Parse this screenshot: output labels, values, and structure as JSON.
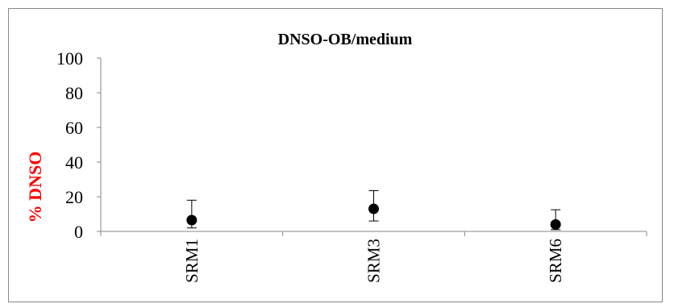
{
  "chart_data": {
    "type": "scatter",
    "title": "DNSO-OB/medium",
    "ylabel": "% DNSO",
    "xlabel": "",
    "ylim": [
      0,
      100
    ],
    "yticks": [
      0,
      20,
      40,
      60,
      80,
      100
    ],
    "categories": [
      "SRM1",
      "SRM3",
      "SRM6"
    ],
    "values": [
      6.5,
      13,
      4
    ],
    "error_low": [
      2,
      6,
      1
    ],
    "error_high": [
      18,
      23.5,
      12.5
    ],
    "grid": false,
    "legend": "none",
    "colors": {
      "ylabel": "#ff0000",
      "marker": "#000000",
      "axis": "#878787"
    }
  }
}
